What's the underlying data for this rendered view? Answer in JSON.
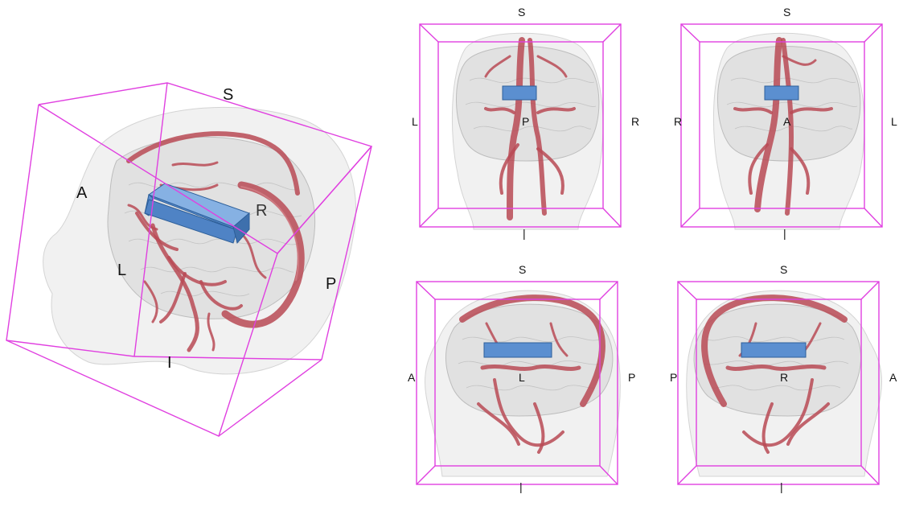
{
  "main_view": {
    "labels": {
      "s": "S",
      "a": "A",
      "r": "R",
      "l": "L",
      "p": "P",
      "i": "I"
    }
  },
  "views": [
    {
      "top": "S",
      "left": "L",
      "right": "R",
      "center": "P",
      "bottom": "|"
    },
    {
      "top": "S",
      "left": "R",
      "right": "L",
      "center": "A",
      "bottom": "|"
    },
    {
      "top": "S",
      "left": "A",
      "right": "P",
      "center": "L",
      "bottom": "|"
    },
    {
      "top": "S",
      "left": "P",
      "right": "A",
      "center": "R",
      "bottom": "|"
    }
  ],
  "colors": {
    "box": "#e040e0",
    "vessel": "#b84a55",
    "probe": "#5b8fd0",
    "head": "#f1f1f1"
  }
}
